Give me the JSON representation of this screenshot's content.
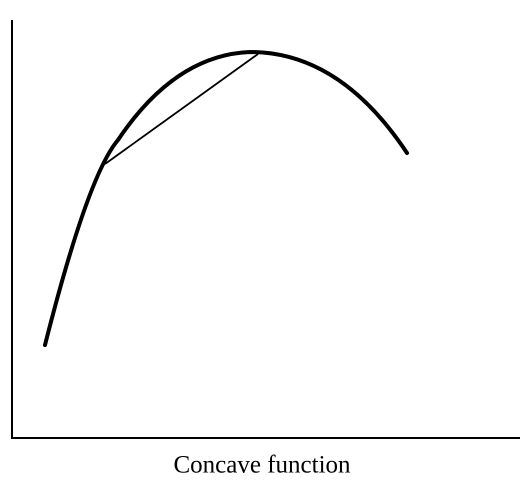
{
  "caption": "Concave function"
}
